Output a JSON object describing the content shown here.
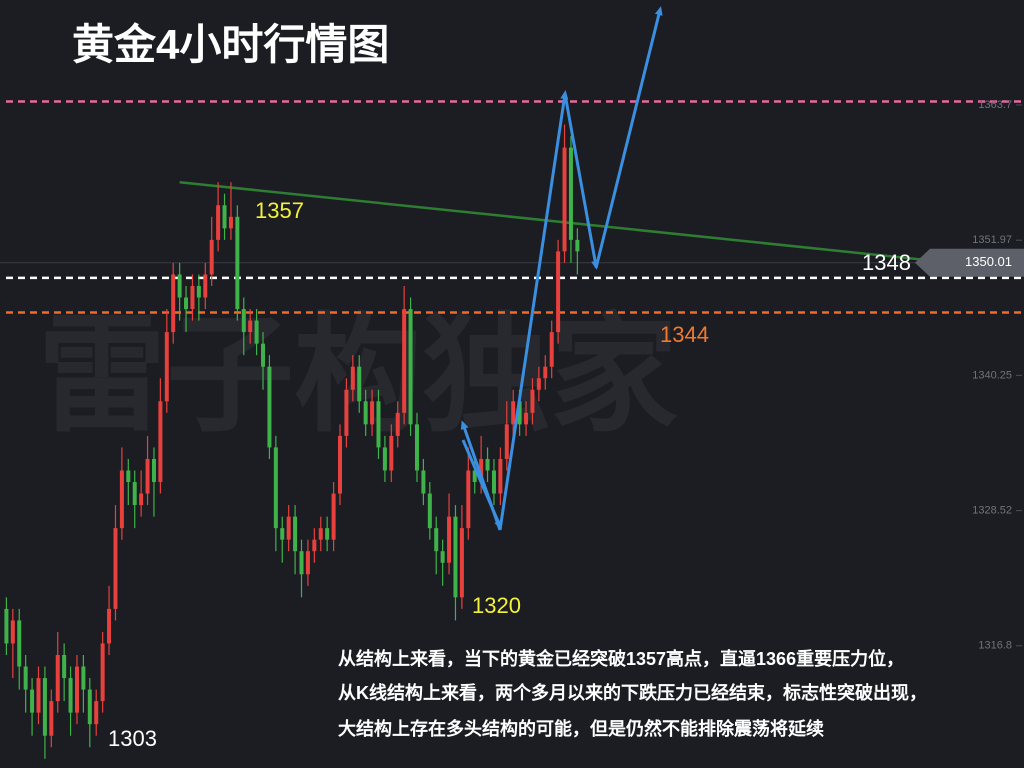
{
  "chart_data": {
    "type": "candlestick",
    "title": "黄金4小时行情图",
    "watermark": "雷子构独家",
    "open": [
      1320,
      1317,
      1319,
      1315,
      1313,
      1311,
      1314,
      1309,
      1312,
      1316,
      1314,
      1311,
      1315,
      1313,
      1310,
      1312,
      1317,
      1320,
      1327,
      1332,
      1331,
      1329,
      1330,
      1333,
      1331,
      1338,
      1344,
      1349,
      1347,
      1346,
      1348,
      1347,
      1349,
      1352,
      1355,
      1353,
      1354,
      1346,
      1344,
      1345,
      1343,
      1341,
      1334,
      1327,
      1326,
      1328,
      1325,
      1323,
      1325,
      1326,
      1327,
      1326,
      1330,
      1335,
      1339,
      1341,
      1338,
      1336,
      1338,
      1334,
      1332,
      1335,
      1337,
      1346,
      1336,
      1332,
      1330,
      1327,
      1325,
      1324,
      1328,
      1321,
      1327,
      1332,
      1331,
      1333,
      1332,
      1330,
      1333,
      1336,
      1338,
      1336,
      1337,
      1339,
      1340,
      1341,
      1344,
      1351,
      1360,
      1352
    ],
    "high": [
      1321,
      1320,
      1320,
      1316,
      1314,
      1315,
      1315,
      1313,
      1318,
      1317,
      1315,
      1316,
      1316,
      1314,
      1313,
      1318,
      1322,
      1329,
      1334,
      1333,
      1332,
      1332,
      1335,
      1334,
      1340,
      1346,
      1350,
      1350,
      1348,
      1349,
      1349,
      1350,
      1354,
      1357,
      1356,
      1357,
      1355,
      1347,
      1346,
      1346,
      1344,
      1342,
      1335,
      1328,
      1329,
      1329,
      1326,
      1326,
      1327,
      1328,
      1328,
      1331,
      1336,
      1340,
      1342,
      1342,
      1339,
      1339,
      1339,
      1335,
      1336,
      1338,
      1348,
      1347,
      1337,
      1333,
      1331,
      1328,
      1326,
      1330,
      1329,
      1329,
      1334,
      1333,
      1335,
      1334,
      1333,
      1334,
      1338,
      1339,
      1339,
      1338,
      1340,
      1341,
      1342,
      1345,
      1352,
      1362,
      1361,
      1353
    ],
    "low": [
      1316,
      1314,
      1313,
      1311,
      1309,
      1310,
      1307,
      1308,
      1311,
      1312,
      1309,
      1310,
      1311,
      1308,
      1309,
      1311,
      1316,
      1319,
      1326,
      1329,
      1327,
      1328,
      1329,
      1328,
      1330,
      1337,
      1343,
      1345,
      1344,
      1345,
      1345,
      1346,
      1348,
      1351,
      1352,
      1352,
      1345,
      1342,
      1343,
      1342,
      1339,
      1333,
      1325,
      1324,
      1325,
      1323,
      1321,
      1322,
      1324,
      1325,
      1325,
      1325,
      1329,
      1334,
      1338,
      1337,
      1335,
      1335,
      1333,
      1331,
      1331,
      1334,
      1336,
      1335,
      1331,
      1329,
      1326,
      1323,
      1322,
      1323,
      1319,
      1320,
      1326,
      1330,
      1330,
      1331,
      1329,
      1329,
      1332,
      1335,
      1335,
      1335,
      1336,
      1338,
      1339,
      1340,
      1343,
      1350,
      1350,
      1349
    ],
    "close": [
      1317,
      1319,
      1315,
      1313,
      1311,
      1314,
      1309,
      1312,
      1316,
      1314,
      1311,
      1315,
      1313,
      1310,
      1312,
      1317,
      1320,
      1327,
      1332,
      1331,
      1329,
      1330,
      1333,
      1331,
      1338,
      1344,
      1349,
      1347,
      1346,
      1348,
      1347,
      1349,
      1352,
      1355,
      1353,
      1354,
      1346,
      1344,
      1345,
      1343,
      1341,
      1334,
      1327,
      1326,
      1328,
      1325,
      1323,
      1325,
      1326,
      1327,
      1326,
      1330,
      1335,
      1339,
      1341,
      1338,
      1336,
      1338,
      1334,
      1332,
      1335,
      1337,
      1346,
      1336,
      1332,
      1330,
      1327,
      1325,
      1324,
      1328,
      1321,
      1327,
      1332,
      1331,
      1333,
      1332,
      1330,
      1333,
      1336,
      1338,
      1336,
      1337,
      1339,
      1340,
      1341,
      1344,
      1351,
      1360,
      1352,
      1351
    ],
    "up_color": "#e8403c",
    "down_color": "#3fb34a",
    "xlim": [
      -1,
      158
    ],
    "ylim": [
      1306.2,
      1372.8
    ],
    "yticks": [
      1316.8,
      1328.52,
      1340.25,
      1351.97,
      1363.7
    ],
    "last_price": 1350.01,
    "levels": [
      {
        "value": 1364,
        "color": "#e46aa0"
      },
      {
        "value": 1348.7,
        "color": "#ffffff"
      },
      {
        "value": 1345.7,
        "color": "#f06a2a"
      }
    ],
    "trendline": {
      "x": [
        27,
        158
      ],
      "y": [
        1357,
        1349.4
      ],
      "color": "#2e7d32"
    },
    "annotations": [
      {
        "text": "1357",
        "color": "#f2f23a"
      },
      {
        "text": "1320",
        "color": "#f2f23a"
      },
      {
        "text": "1303",
        "color": "#ffffff"
      },
      {
        "text": "1344",
        "color": "#f07a30"
      },
      {
        "text": "1348",
        "color": "#ffffff"
      }
    ],
    "commentary": [
      "从结构上来看，当下的黄金已经突破1357高点，直逼1366重要压力位，",
      "从K线结构上来看，两个多月以来的下跌压力已经结束，标志性突破出现，",
      "大结构上存在多头结构的可能，但是仍然不能排除震荡将延续"
    ]
  }
}
